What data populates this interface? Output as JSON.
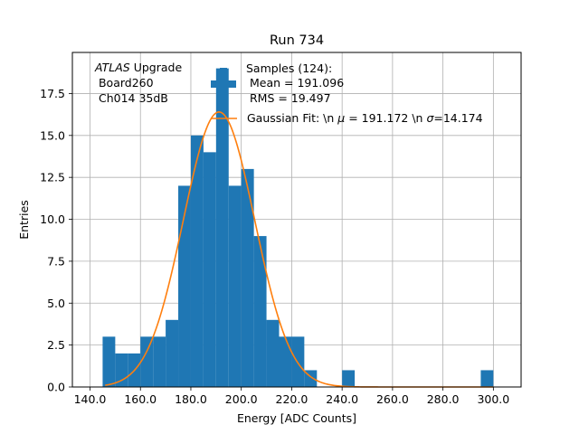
{
  "chart_data": {
    "type": "histogram",
    "title": "Run 734",
    "xlabel": "Energy [ADC Counts]",
    "ylabel": "Entries",
    "xlim": [
      133,
      311
    ],
    "ylim": [
      0,
      19.95
    ],
    "grid": true,
    "xticks": [
      140.0,
      160.0,
      180.0,
      200.0,
      220.0,
      240.0,
      260.0,
      280.0,
      300.0
    ],
    "xtick_labels": [
      "140.0",
      "160.0",
      "180.0",
      "200.0",
      "220.0",
      "240.0",
      "260.0",
      "280.0",
      "300.0"
    ],
    "yticks": [
      0.0,
      2.5,
      5.0,
      7.5,
      10.0,
      12.5,
      15.0,
      17.5
    ],
    "ytick_labels": [
      "0.0",
      "2.5",
      "5.0",
      "7.5",
      "10.0",
      "12.5",
      "15.0",
      "17.5"
    ],
    "histogram": {
      "name": "Samples (124):",
      "color": "#1f77b4",
      "bin_edges": [
        145.0,
        150.0,
        155.0,
        160.0,
        165.0,
        170.0,
        175.0,
        180.0,
        185.0,
        190.0,
        195.0,
        200.0,
        205.0,
        210.0,
        215.0,
        220.0,
        225.0,
        230.0,
        235.0,
        240.0,
        245.0,
        250.0,
        255.0,
        260.0,
        265.0,
        270.0,
        275.0,
        280.0,
        285.0,
        290.0,
        295.0,
        300.0
      ],
      "counts": [
        3,
        2,
        2,
        3,
        3,
        4,
        12,
        15,
        14,
        19,
        12,
        13,
        9,
        4,
        3,
        3,
        1,
        0,
        0,
        1,
        0,
        0,
        0,
        0,
        0,
        0,
        0,
        0,
        0,
        0,
        1
      ]
    },
    "fit": {
      "name": "Gaussian Fit",
      "color": "#ff7f0e",
      "mu": 191.172,
      "sigma": 14.174,
      "amplitude": 16.4,
      "x_range": [
        146,
        300
      ]
    },
    "legend": {
      "location": "top-right",
      "samples_title": "Samples (124):",
      "samples_mean": " Mean = 191.096",
      "samples_rms": " RMS = 19.497",
      "fit_label_prefix": "Gaussian Fit: \\n ",
      "fit_label_mu_symbol": "μ",
      "fit_label_mid": " = 191.172 \\n ",
      "fit_label_sigma_symbol": "σ",
      "fit_label_suffix": "=14.174"
    },
    "annotation": {
      "experiment": "ATLAS",
      "experiment_suffix": " Upgrade",
      "board": " Board260",
      "channel": " Ch014 35dB"
    }
  }
}
